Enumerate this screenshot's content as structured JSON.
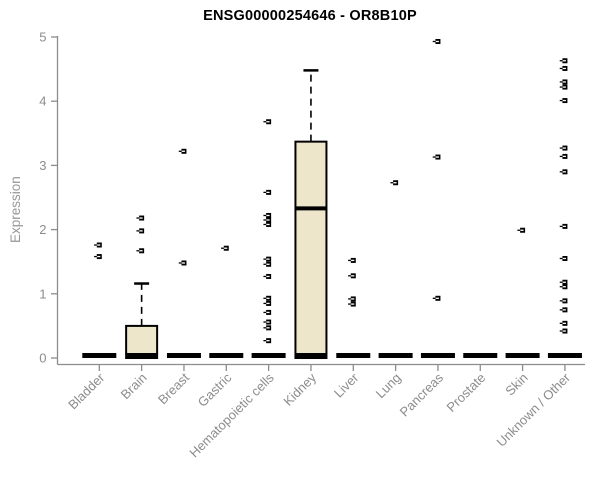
{
  "chart_data": {
    "type": "boxplot",
    "title": "ENSG00000254646 - OR8B10P",
    "ylabel": "Expression",
    "ylim": [
      0,
      5
    ],
    "yticks": [
      0,
      1,
      2,
      3,
      4,
      5
    ],
    "grid": false,
    "legend": "none",
    "categories": [
      "Bladder",
      "Brain",
      "Breast",
      "Gastric",
      "Hematopoietic cells",
      "Kidney",
      "Liver",
      "Lung",
      "Pancreas",
      "Prostate",
      "Skin",
      "Unknown / Other"
    ],
    "boxes": [
      {
        "category": "Bladder",
        "low": 0,
        "q1": 0,
        "median": 0,
        "q3": 0,
        "high": 0,
        "outliers": [
          1.76,
          1.58
        ]
      },
      {
        "category": "Brain",
        "low": 0,
        "q1": 0,
        "median": 0,
        "q3": 0.5,
        "high": 1.16,
        "outliers": [
          2.18,
          1.98,
          1.67
        ]
      },
      {
        "category": "Breast",
        "low": 0,
        "q1": 0,
        "median": 0,
        "q3": 0,
        "high": 0,
        "outliers": [
          3.22,
          1.48
        ]
      },
      {
        "category": "Gastric",
        "low": 0,
        "q1": 0,
        "median": 0,
        "q3": 0,
        "high": 0,
        "outliers": [
          1.71
        ]
      },
      {
        "category": "Hematopoietic cells",
        "low": 0,
        "q1": 0,
        "median": 0,
        "q3": 0,
        "high": 0,
        "outliers": [
          3.68,
          2.58,
          2.22,
          2.15,
          2.08,
          1.54,
          1.46,
          1.27,
          0.93,
          0.85,
          0.71,
          0.56,
          0.47,
          0.27
        ]
      },
      {
        "category": "Kidney",
        "low": 0,
        "q1": 0,
        "median": 2.33,
        "q3": 3.37,
        "high": 4.48,
        "outliers": []
      },
      {
        "category": "Liver",
        "low": 0,
        "q1": 0,
        "median": 0,
        "q3": 0,
        "high": 0,
        "outliers": [
          1.52,
          1.28,
          0.92,
          0.84
        ]
      },
      {
        "category": "Lung",
        "low": 0,
        "q1": 0,
        "median": 0,
        "q3": 0,
        "high": 0,
        "outliers": [
          2.73
        ]
      },
      {
        "category": "Pancreas",
        "low": 0,
        "q1": 0,
        "median": 0,
        "q3": 0,
        "high": 0,
        "outliers": [
          4.93,
          3.13,
          0.93
        ]
      },
      {
        "category": "Prostate",
        "low": 0,
        "q1": 0,
        "median": 0,
        "q3": 0,
        "high": 0,
        "outliers": []
      },
      {
        "category": "Skin",
        "low": 0,
        "q1": 0,
        "median": 0,
        "q3": 0,
        "high": 0,
        "outliers": [
          1.99
        ]
      },
      {
        "category": "Unknown / Other",
        "low": 0,
        "q1": 0,
        "median": 0,
        "q3": 0,
        "high": 0,
        "outliers": [
          4.63,
          4.51,
          4.3,
          4.22,
          4.01,
          3.27,
          3.14,
          2.9,
          2.05,
          1.55,
          1.18,
          1.11,
          0.89,
          0.75,
          0.54,
          0.42
        ]
      }
    ],
    "colors": {
      "box_fill": "#EDE6CB",
      "box_stroke": "#000000",
      "median": "#000000",
      "zero_bar": "#000000",
      "outlier": "#000000",
      "axis": "#8C8C8C",
      "tick_label": "#8C8C8C",
      "title": "#000000",
      "background": "#FFFFFF"
    }
  }
}
